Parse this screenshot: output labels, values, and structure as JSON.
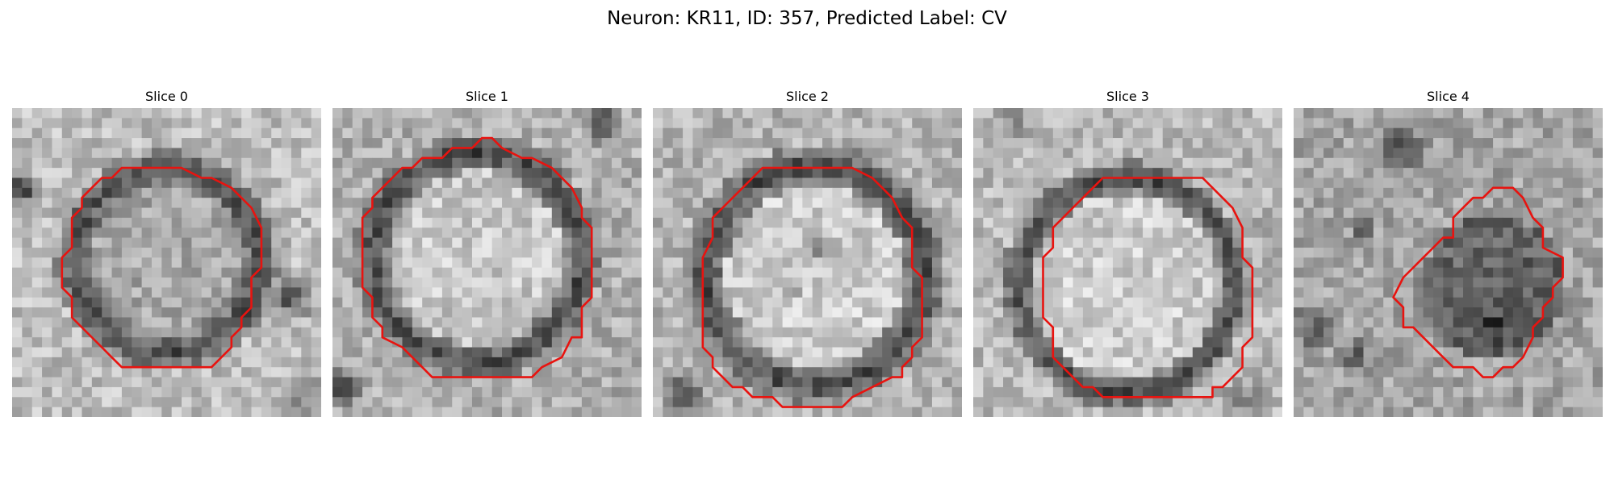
{
  "figure": {
    "title": "Neuron: KR11, ID: 357, Predicted Label: CV"
  },
  "colors": {
    "contour": "#e8130f",
    "colormap": "grayscale"
  },
  "slices": [
    {
      "label": "Slice 0"
    },
    {
      "label": "Slice 1"
    },
    {
      "label": "Slice 2"
    },
    {
      "label": "Slice 3"
    },
    {
      "label": "Slice 4"
    }
  ]
}
